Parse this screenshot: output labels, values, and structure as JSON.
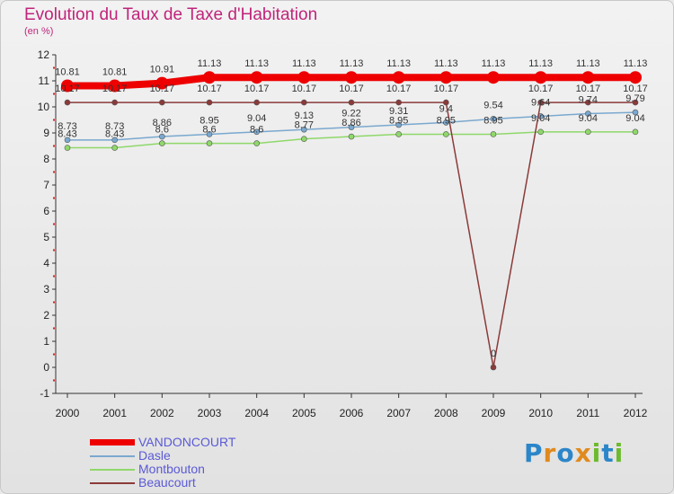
{
  "header": {
    "title": "Evolution du Taux de Taxe d'Habitation",
    "unit": "(en %)"
  },
  "brand": {
    "logo_text": "Proxiti"
  },
  "chart_data": {
    "type": "line",
    "x": [
      "2000",
      "2001",
      "2002",
      "2003",
      "2004",
      "2005",
      "2006",
      "2007",
      "2008",
      "2009",
      "2010",
      "2011",
      "2012"
    ],
    "ylim": [
      -1,
      12
    ],
    "yticks": [
      -1,
      0,
      1,
      2,
      3,
      4,
      5,
      6,
      7,
      8,
      9,
      10,
      11,
      12
    ],
    "grid": false,
    "legend_position": "bottom-left",
    "series": [
      {
        "name": "VANDONCOURT",
        "color": "#ee0000",
        "values": [
          10.81,
          10.81,
          10.91,
          11.13,
          11.13,
          11.13,
          11.13,
          11.13,
          11.13,
          11.13,
          11.13,
          11.13,
          11.13
        ],
        "labels": [
          "10.81",
          "10.81",
          "10.91",
          "11.13",
          "11.13",
          "11.13",
          "11.13",
          "11.13",
          "11.13",
          "11.13",
          "11.13",
          "11.13",
          "11.13"
        ]
      },
      {
        "name": "Dasle",
        "color": "#7aa8cf",
        "values": [
          8.73,
          8.73,
          8.86,
          8.95,
          9.04,
          9.13,
          9.22,
          9.31,
          9.4,
          9.54,
          9.64,
          9.74,
          9.79
        ],
        "labels": [
          "8.73",
          "8.73",
          "8.86",
          "8.95",
          "9.04",
          "9.13",
          "9.22",
          "9.31",
          "9.4",
          "9.54",
          "9.64",
          "9.74",
          "9.79"
        ]
      },
      {
        "name": "Montbouton",
        "color": "#8fd86a",
        "values": [
          8.43,
          8.43,
          8.6,
          8.6,
          8.6,
          8.77,
          8.86,
          8.95,
          8.95,
          8.95,
          9.04,
          9.04,
          9.04
        ],
        "labels": [
          "8.43",
          "8.43",
          "8.6",
          "8.6",
          "8.6",
          "8.77",
          "8.86",
          "8.95",
          "8.95",
          "8.95",
          "9.04",
          "9.04",
          "9.04"
        ]
      },
      {
        "name": "Beaucourt",
        "color": "#8b3a3a",
        "values": [
          10.17,
          10.17,
          10.17,
          10.17,
          10.17,
          10.17,
          10.17,
          10.17,
          10.17,
          0,
          10.17,
          10.17,
          10.17
        ],
        "labels": [
          "10.17",
          "10.17",
          "10.17",
          "10.17",
          "10.17",
          "10.17",
          "10.17",
          "10.17",
          "10.17",
          "0",
          "10.17",
          "10.17",
          "10.17"
        ]
      }
    ]
  }
}
